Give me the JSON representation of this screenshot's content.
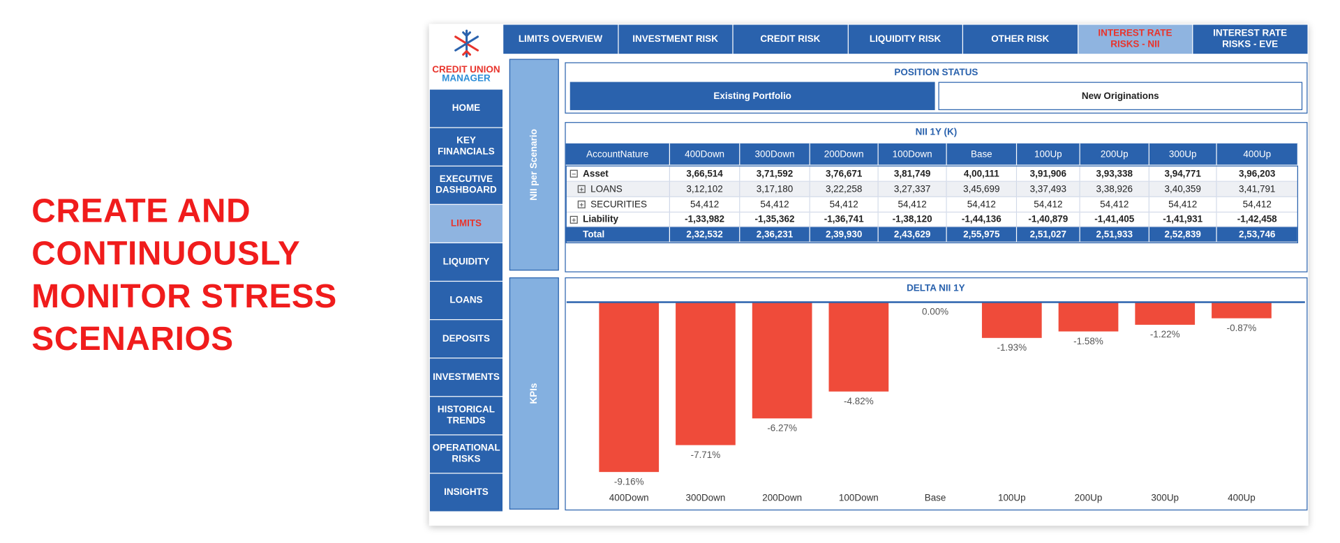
{
  "headline": [
    "CREATE AND",
    "CONTINUOUSLY",
    "MONITOR STRESS",
    "SCENARIOS"
  ],
  "logo": {
    "line1": "CREDIT UNION",
    "line2": "MANAGER"
  },
  "top_tabs": [
    {
      "label": "LIMITS OVERVIEW",
      "active": false
    },
    {
      "label": "INVESTMENT RISK",
      "active": false
    },
    {
      "label": "CREDIT RISK",
      "active": false
    },
    {
      "label": "LIQUIDITY RISK",
      "active": false
    },
    {
      "label": "OTHER RISK",
      "active": false
    },
    {
      "label": "INTEREST RATE RISKS - NII",
      "active": true
    },
    {
      "label": "INTEREST RATE RISKS - EVE",
      "active": false
    }
  ],
  "side_menu": [
    {
      "label": "HOME",
      "active": false
    },
    {
      "label": "KEY FINANCIALS",
      "active": false
    },
    {
      "label": "EXECUTIVE DASHBOARD",
      "active": false
    },
    {
      "label": "LIMITS",
      "active": true
    },
    {
      "label": "LIQUIDITY",
      "active": false
    },
    {
      "label": "LOANS",
      "active": false
    },
    {
      "label": "DEPOSITS",
      "active": false
    },
    {
      "label": "INVESTMENTS",
      "active": false
    },
    {
      "label": "HISTORICAL TRENDS",
      "active": false
    },
    {
      "label": "OPERATIONAL RISKS",
      "active": false
    },
    {
      "label": "INSIGHTS",
      "active": false
    }
  ],
  "side_panels": [
    "NII per Scenario",
    "KPIs"
  ],
  "position_status": {
    "title": "POSITION STATUS",
    "buttons": [
      {
        "label": "Existing Portfolio",
        "selected": true
      },
      {
        "label": "New Originations",
        "selected": false
      }
    ]
  },
  "nii_table": {
    "title": "NII 1Y (K)",
    "columns": [
      "AccountNature",
      "400Down",
      "300Down",
      "200Down",
      "100Down",
      "Base",
      "100Up",
      "200Up",
      "300Up",
      "400Up"
    ],
    "rows": [
      {
        "label": "Asset",
        "style": "parent",
        "expanded": true,
        "cells": [
          "3,66,514",
          "3,71,592",
          "3,76,671",
          "3,81,749",
          "4,00,111",
          "3,91,906",
          "3,93,338",
          "3,94,771",
          "3,96,203"
        ]
      },
      {
        "label": "LOANS",
        "style": "child",
        "expanded": false,
        "cells": [
          "3,12,102",
          "3,17,180",
          "3,22,258",
          "3,27,337",
          "3,45,699",
          "3,37,493",
          "3,38,926",
          "3,40,359",
          "3,41,791"
        ]
      },
      {
        "label": "SECURITIES",
        "style": "child",
        "expanded": false,
        "cells": [
          "54,412",
          "54,412",
          "54,412",
          "54,412",
          "54,412",
          "54,412",
          "54,412",
          "54,412",
          "54,412"
        ]
      },
      {
        "label": "Liability",
        "style": "parent",
        "expanded": false,
        "cells": [
          "-1,33,982",
          "-1,35,362",
          "-1,36,741",
          "-1,38,120",
          "-1,44,136",
          "-1,40,879",
          "-1,41,405",
          "-1,41,931",
          "-1,42,458"
        ]
      },
      {
        "label": "Total",
        "style": "total",
        "cells": [
          "2,32,532",
          "2,36,231",
          "2,39,930",
          "2,43,629",
          "2,55,975",
          "2,51,027",
          "2,51,933",
          "2,52,839",
          "2,53,746"
        ]
      }
    ]
  },
  "chart_data": {
    "type": "bar",
    "title": "DELTA NII 1Y",
    "categories": [
      "400Down",
      "300Down",
      "200Down",
      "100Down",
      "Base",
      "100Up",
      "200Up",
      "300Up",
      "400Up"
    ],
    "values": [
      -9.16,
      -7.71,
      -6.27,
      -4.82,
      0,
      -1.93,
      -1.58,
      -1.22,
      -0.87
    ],
    "value_labels": [
      "-9.16%",
      "-7.71%",
      "-6.27%",
      "-4.82%",
      "0.00%",
      "-1.93%",
      "-1.58%",
      "-1.22%",
      "-0.87%"
    ],
    "color": "#ef4b3a"
  }
}
